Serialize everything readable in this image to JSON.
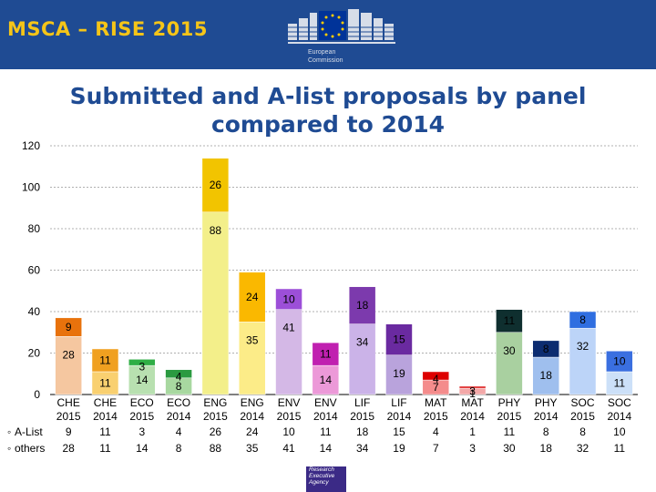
{
  "header": {
    "title": "MSCA – RISE 2015"
  },
  "ec_logo": {
    "line1": "European",
    "line2": "Commission"
  },
  "slide": {
    "title_line1": "Submitted and A-list proposals by panel",
    "title_line2": "compared to 2014"
  },
  "footer_logo": {
    "line1": "Research",
    "line2": "Executive",
    "line3": "Agency"
  },
  "colors": {
    "header_bg": "#1f4b93",
    "header_title": "#f5c518",
    "slide_title": "#1f4b93"
  },
  "chart_data": {
    "type": "bar",
    "stacked": true,
    "ylim": [
      0,
      120
    ],
    "yticks": [
      0,
      20,
      40,
      60,
      80,
      100,
      120
    ],
    "grid": true,
    "categories": [
      {
        "panel": "CHE",
        "year": "2015"
      },
      {
        "panel": "CHE",
        "year": "2014"
      },
      {
        "panel": "ECO",
        "year": "2015"
      },
      {
        "panel": "ECO",
        "year": "2014"
      },
      {
        "panel": "ENG",
        "year": "2015"
      },
      {
        "panel": "ENG",
        "year": "2014"
      },
      {
        "panel": "ENV",
        "year": "2015"
      },
      {
        "panel": "ENV",
        "year": "2014"
      },
      {
        "panel": "LIF",
        "year": "2015"
      },
      {
        "panel": "LIF",
        "year": "2014"
      },
      {
        "panel": "MAT",
        "year": "2015"
      },
      {
        "panel": "MAT",
        "year": "2014"
      },
      {
        "panel": "PHY",
        "year": "2015"
      },
      {
        "panel": "PHY",
        "year": "2014"
      },
      {
        "panel": "SOC",
        "year": "2015"
      },
      {
        "panel": "SOC",
        "year": "2014"
      }
    ],
    "series": [
      {
        "name": "others",
        "values": [
          28,
          11,
          14,
          8,
          88,
          35,
          41,
          14,
          34,
          19,
          7,
          3,
          30,
          18,
          32,
          11
        ]
      },
      {
        "name": "A-List",
        "values": [
          9,
          11,
          3,
          4,
          26,
          24,
          10,
          11,
          18,
          15,
          4,
          1,
          11,
          8,
          8,
          10
        ]
      }
    ],
    "table_rows": [
      {
        "label": "A-List",
        "values": [
          "9",
          "11",
          "3",
          "4",
          "26",
          "24",
          "10",
          "11",
          "18",
          "15",
          "4",
          "1",
          "11",
          "8",
          "8",
          "10"
        ]
      },
      {
        "label": "others",
        "values": [
          "28",
          "11",
          "14",
          "8",
          "88",
          "35",
          "41",
          "14",
          "34",
          "19",
          "7",
          "3",
          "30",
          "18",
          "32",
          "11"
        ]
      }
    ],
    "colors": {
      "others": [
        "#f5c7a0",
        "#f9d070",
        "#b8e0b0",
        "#a8d8a0",
        "#f3ef8a",
        "#fcec88",
        "#d4b8e6",
        "#ec99d8",
        "#cbb3e8",
        "#b9a3dc",
        "#f48c8c",
        "#f3a8a8",
        "#a9d0a0",
        "#9fbfee",
        "#bcd4f8",
        "#cce0f8"
      ],
      "alist": [
        "#e8720c",
        "#f0a020",
        "#2fae45",
        "#2a9a40",
        "#f2c400",
        "#fab800",
        "#9c4fd8",
        "#c020b0",
        "#7c3aad",
        "#6a2aa0",
        "#dd0000",
        "#e03030",
        "#0f2f2f",
        "#0c2c70",
        "#2f6ee0",
        "#3a6fe0"
      ]
    }
  }
}
